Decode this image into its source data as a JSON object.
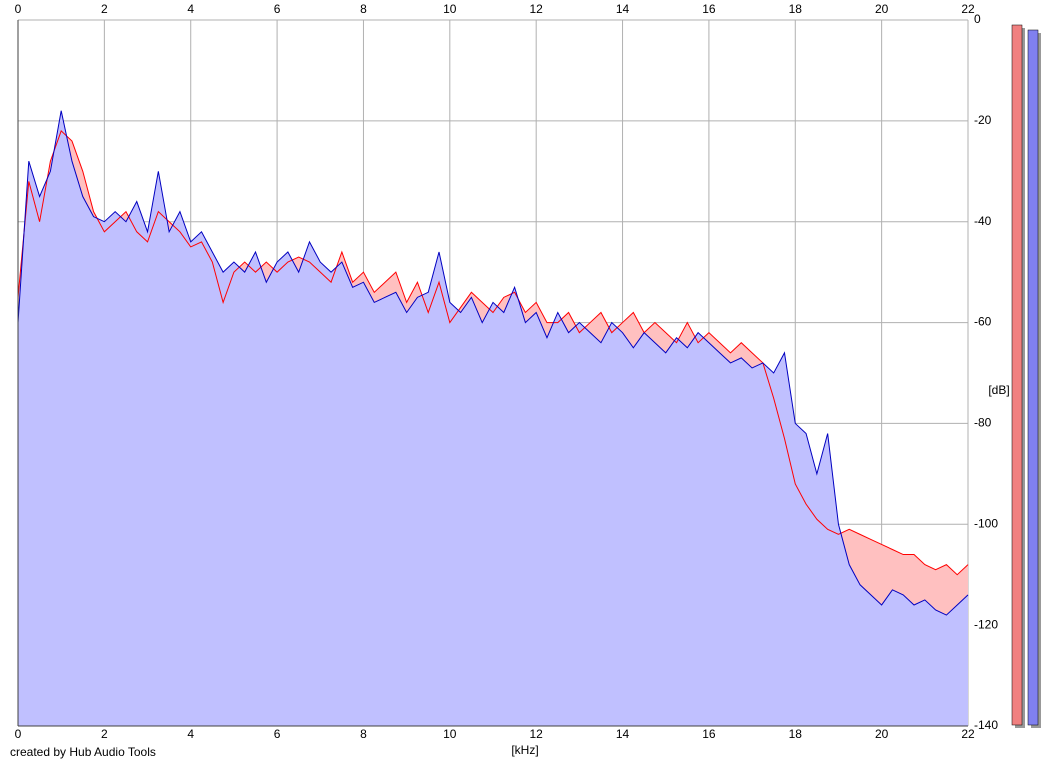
{
  "chart_data": {
    "type": "line",
    "x_label": "[kHz]",
    "y_label": "[dB]",
    "footer": "created by Hub Audio Tools",
    "xlim": [
      0,
      22
    ],
    "ylim": [
      -140,
      0
    ],
    "xticks": [
      0,
      2,
      4,
      6,
      8,
      10,
      12,
      14,
      16,
      18,
      20,
      22
    ],
    "yticks": [
      0,
      -20,
      -40,
      -60,
      -80,
      -100,
      -120,
      -140
    ],
    "grid": true,
    "x": [
      0,
      0.25,
      0.5,
      0.75,
      1,
      1.25,
      1.5,
      1.75,
      2,
      2.25,
      2.5,
      2.75,
      3,
      3.25,
      3.5,
      3.75,
      4,
      4.25,
      4.5,
      4.75,
      5,
      5.25,
      5.5,
      5.75,
      6,
      6.25,
      6.5,
      6.75,
      7,
      7.25,
      7.5,
      7.75,
      8,
      8.25,
      8.5,
      8.75,
      9,
      9.25,
      9.5,
      9.75,
      10,
      10.25,
      10.5,
      10.75,
      11,
      11.25,
      11.5,
      11.75,
      12,
      12.25,
      12.5,
      12.75,
      13,
      13.25,
      13.5,
      13.75,
      14,
      14.25,
      14.5,
      14.75,
      15,
      15.25,
      15.5,
      15.75,
      16,
      16.25,
      16.5,
      16.75,
      17,
      17.25,
      17.5,
      17.75,
      18,
      18.25,
      18.5,
      18.75,
      19,
      19.25,
      19.5,
      19.75,
      20,
      20.25,
      20.5,
      20.75,
      21,
      21.25,
      21.5,
      21.75,
      22
    ],
    "series": [
      {
        "color": "#ff0000",
        "fill": "#ffc0c0",
        "values": [
          -55,
          -32,
          -40,
          -28,
          -22,
          -24,
          -30,
          -38,
          -42,
          -40,
          -38,
          -42,
          -44,
          -38,
          -40,
          -42,
          -45,
          -44,
          -48,
          -56,
          -50,
          -48,
          -50,
          -48,
          -50,
          -48,
          -47,
          -48,
          -50,
          -52,
          -46,
          -52,
          -50,
          -54,
          -52,
          -50,
          -56,
          -52,
          -58,
          -52,
          -60,
          -57,
          -54,
          -56,
          -58,
          -55,
          -54,
          -58,
          -56,
          -60,
          -60,
          -58,
          -62,
          -60,
          -58,
          -62,
          -60,
          -58,
          -62,
          -60,
          -62,
          -64,
          -60,
          -64,
          -62,
          -64,
          -66,
          -64,
          -66,
          -68,
          -75,
          -83,
          -92,
          -96,
          -99,
          -101,
          -102,
          -101,
          -102,
          -103,
          -104,
          -105,
          -106,
          -106,
          -108,
          -109,
          -108,
          -110,
          -108
        ]
      },
      {
        "color": "#0000c0",
        "fill": "#c0c0ff",
        "values": [
          -60,
          -28,
          -35,
          -30,
          -18,
          -28,
          -35,
          -39,
          -40,
          -38,
          -40,
          -36,
          -42,
          -30,
          -42,
          -38,
          -44,
          -42,
          -46,
          -50,
          -48,
          -50,
          -46,
          -52,
          -48,
          -46,
          -50,
          -44,
          -48,
          -50,
          -48,
          -53,
          -52,
          -56,
          -55,
          -54,
          -58,
          -55,
          -54,
          -46,
          -56,
          -58,
          -55,
          -60,
          -56,
          -58,
          -53,
          -60,
          -58,
          -63,
          -58,
          -62,
          -60,
          -62,
          -64,
          -60,
          -62,
          -65,
          -62,
          -64,
          -66,
          -63,
          -65,
          -62,
          -64,
          -66,
          -68,
          -67,
          -69,
          -68,
          -70,
          -66,
          -80,
          -82,
          -90,
          -82,
          -100,
          -108,
          -112,
          -114,
          -116,
          -113,
          -114,
          -116,
          -115,
          -117,
          -118,
          -116,
          -114
        ]
      }
    ]
  }
}
